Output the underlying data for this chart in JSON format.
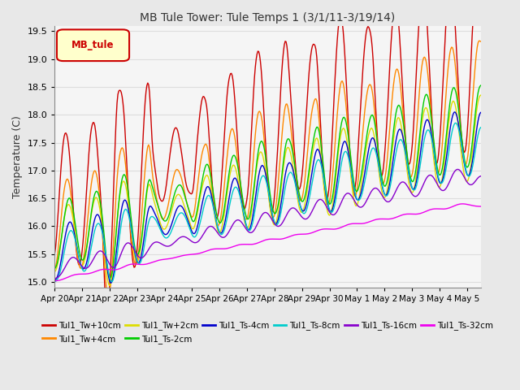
{
  "title": "MB Tule Tower: Tule Temps 1 (3/1/11-3/19/14)",
  "ylabel": "Temperature (C)",
  "xlabel": "",
  "ylim": [
    14.9,
    19.6
  ],
  "xlim": [
    0,
    15.5
  ],
  "x_tick_labels": [
    "Apr 20",
    "Apr 21",
    "Apr 22",
    "Apr 23",
    "Apr 24",
    "Apr 25",
    "Apr 26",
    "Apr 27",
    "Apr 28",
    "Apr 29",
    "Apr 30",
    "May 1",
    "May 2",
    "May 3",
    "May 4",
    "May 5"
  ],
  "x_tick_positions": [
    0,
    1,
    2,
    3,
    4,
    5,
    6,
    7,
    8,
    9,
    10,
    11,
    12,
    13,
    14,
    15
  ],
  "yticks": [
    15.0,
    15.5,
    16.0,
    16.5,
    17.0,
    17.5,
    18.0,
    18.5,
    19.0,
    19.5
  ],
  "grid_color": "#dddddd",
  "background_color": "#e8e8e8",
  "plot_bg_color": "#f5f5f5",
  "legend_label_text": "MB_tule",
  "legend_box_facecolor": "#ffffcc",
  "legend_box_edgecolor": "#cc0000",
  "series_colors": [
    "#cc0000",
    "#ff8800",
    "#dddd00",
    "#00cc00",
    "#0000cc",
    "#00cccc",
    "#8800cc",
    "#ee00ee"
  ],
  "series_labels": [
    "Tul1_Tw+10cm",
    "Tul1_Tw+4cm",
    "Tul1_Tw+2cm",
    "Tul1_Ts-2cm",
    "Tul1_Ts-4cm",
    "Tul1_Ts-8cm",
    "Tul1_Ts-16cm",
    "Tul1_Ts-32cm"
  ],
  "n_pts": 500,
  "n_days": 15.5
}
